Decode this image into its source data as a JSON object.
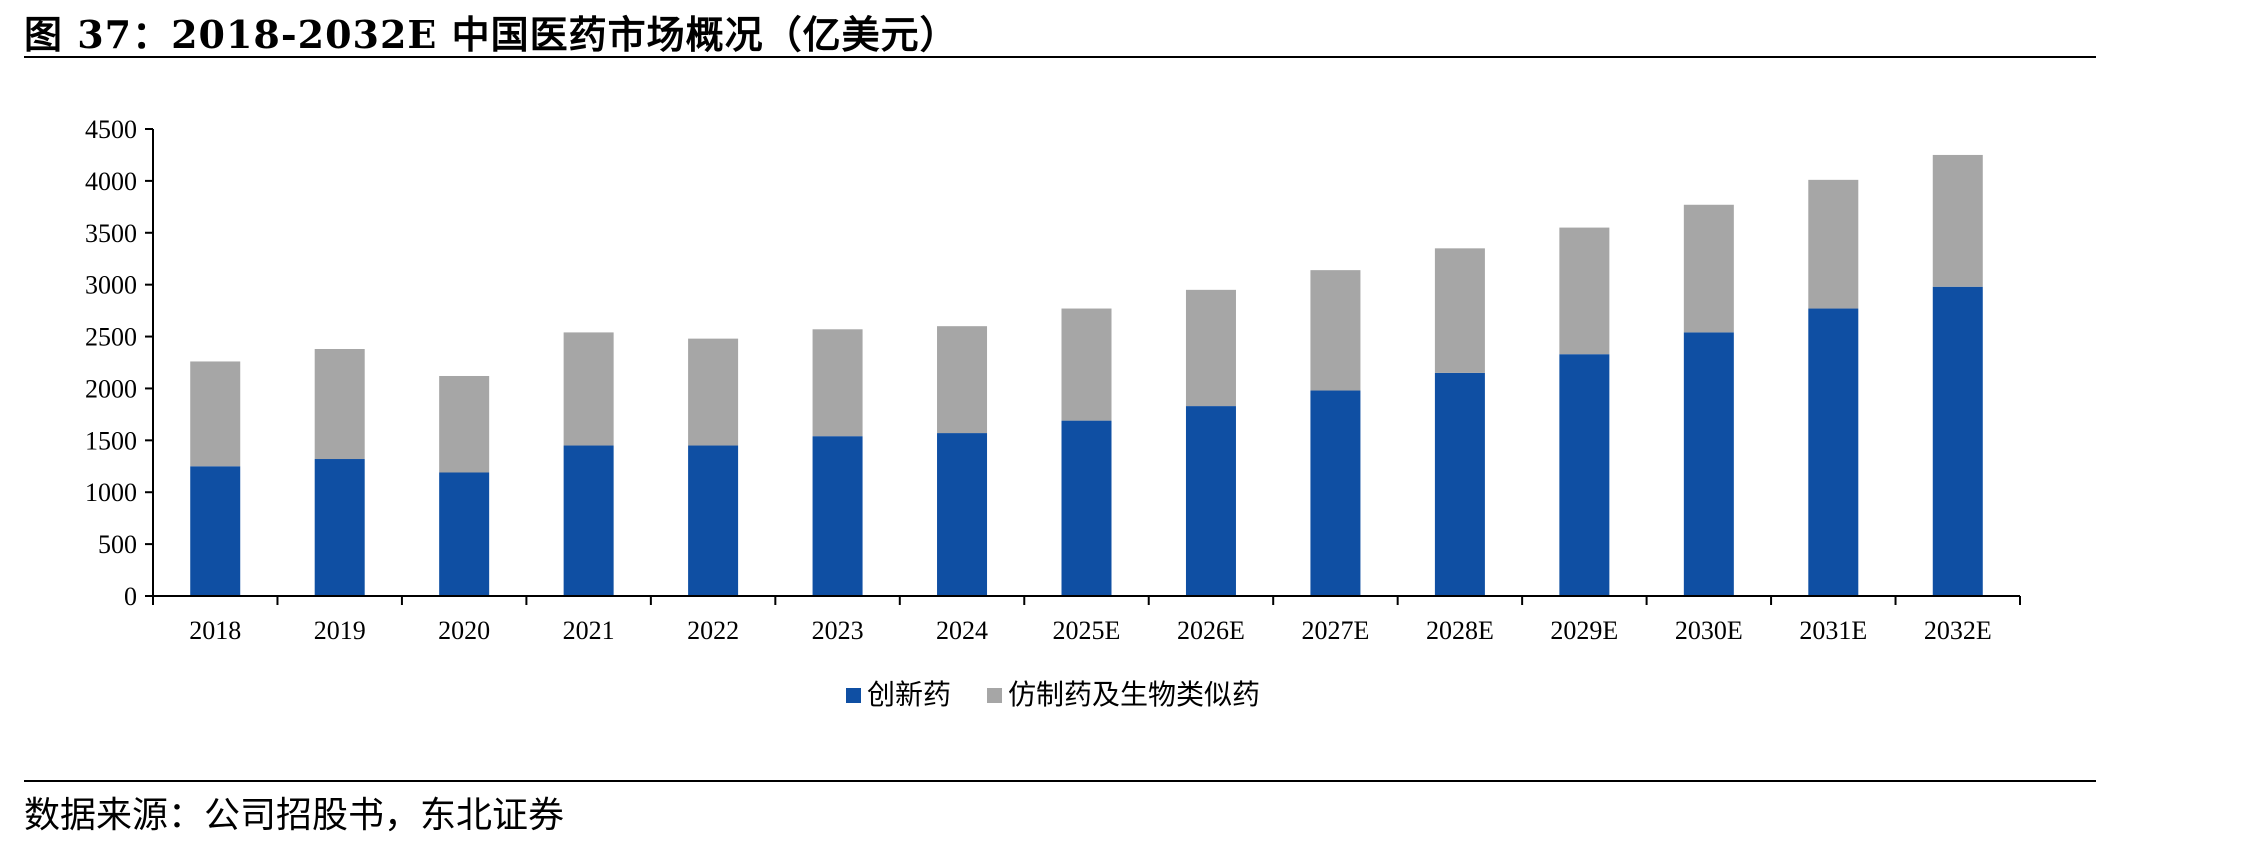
{
  "title": "图 37：2018-2032E 中国医药市场概况（亿美元）",
  "source": "数据来源：公司招股书，东北证券",
  "chart_data": {
    "type": "bar",
    "stacked": true,
    "categories": [
      "2018",
      "2019",
      "2020",
      "2021",
      "2022",
      "2023",
      "2024",
      "2025E",
      "2026E",
      "2027E",
      "2028E",
      "2029E",
      "2030E",
      "2031E",
      "2032E"
    ],
    "series": [
      {
        "name": "创新药",
        "color": "#0f4fa3",
        "values": [
          1250,
          1320,
          1190,
          1450,
          1450,
          1540,
          1570,
          1690,
          1830,
          1980,
          2150,
          2330,
          2540,
          2770,
          2980
        ]
      },
      {
        "name": "仿制药及生物类似药",
        "color": "#a6a6a6",
        "values": [
          1010,
          1060,
          930,
          1090,
          1030,
          1030,
          1030,
          1080,
          1120,
          1160,
          1200,
          1220,
          1230,
          1240,
          1270
        ]
      }
    ],
    "ylim": [
      0,
      4500
    ],
    "yticks": [
      0,
      500,
      1000,
      1500,
      2000,
      2500,
      3000,
      3500,
      4000,
      4500
    ],
    "legend_position": "bottom"
  }
}
